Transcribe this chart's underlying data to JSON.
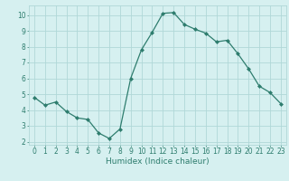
{
  "x": [
    0,
    1,
    2,
    3,
    4,
    5,
    6,
    7,
    8,
    9,
    10,
    11,
    12,
    13,
    14,
    15,
    16,
    17,
    18,
    19,
    20,
    21,
    22,
    23
  ],
  "y": [
    4.8,
    4.3,
    4.5,
    3.9,
    3.5,
    3.4,
    2.55,
    2.2,
    2.8,
    6.0,
    7.8,
    8.9,
    10.1,
    10.15,
    9.4,
    9.1,
    8.85,
    8.3,
    8.4,
    7.55,
    6.6,
    5.5,
    5.1,
    4.4
  ],
  "line_color": "#2e7d6e",
  "marker": "D",
  "marker_size": 2.0,
  "bg_color": "#d6f0f0",
  "grid_color": "#b0d8d8",
  "xlabel": "Humidex (Indice chaleur)",
  "xlim": [
    -0.5,
    23.5
  ],
  "ylim": [
    1.8,
    10.6
  ],
  "yticks": [
    2,
    3,
    4,
    5,
    6,
    7,
    8,
    9,
    10
  ],
  "xticks": [
    0,
    1,
    2,
    3,
    4,
    5,
    6,
    7,
    8,
    9,
    10,
    11,
    12,
    13,
    14,
    15,
    16,
    17,
    18,
    19,
    20,
    21,
    22,
    23
  ],
  "xlabel_fontsize": 6.5,
  "tick_fontsize": 5.5
}
